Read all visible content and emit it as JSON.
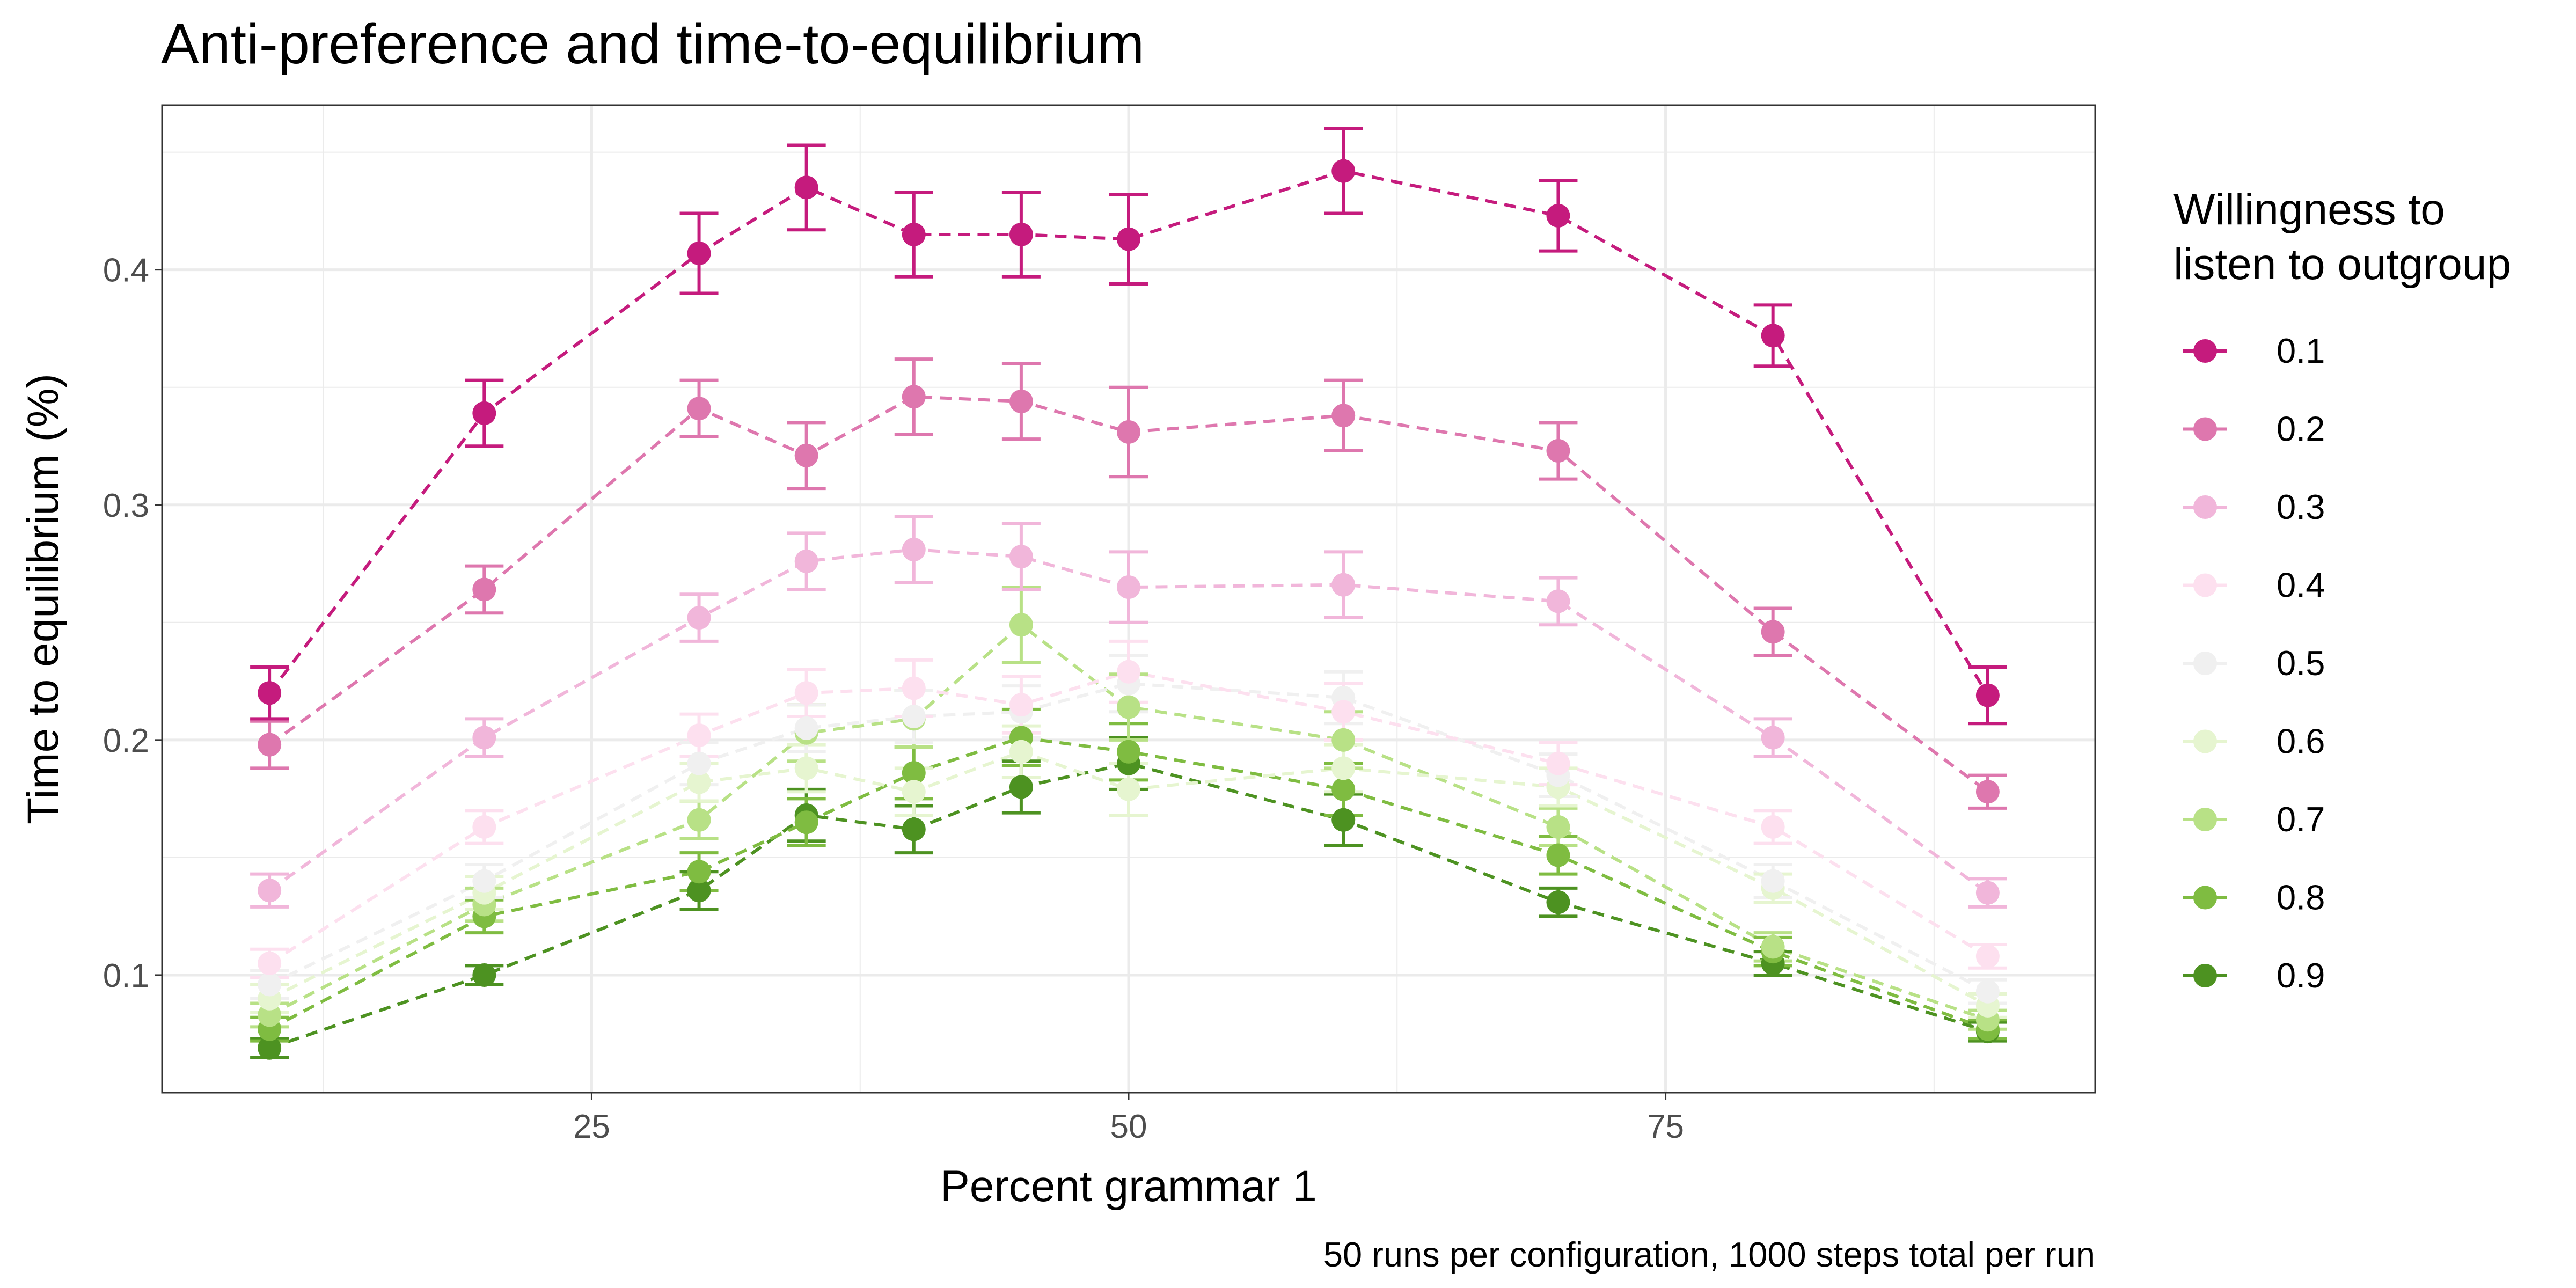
{
  "chart_data": {
    "type": "line",
    "title": "Anti-preference and time-to-equilibrium",
    "xlabel": "Percent grammar 1",
    "ylabel": "Time to equilibrium (%)",
    "caption": "50 runs per configuration, 1000 steps total per run",
    "xlim": [
      5,
      95
    ],
    "ylim": [
      0.05,
      0.47
    ],
    "x_ticks": [
      25,
      50,
      75
    ],
    "y_ticks": [
      0.1,
      0.2,
      0.3,
      0.4
    ],
    "x_tick_labels": [
      "25",
      "50",
      "75"
    ],
    "y_tick_labels": [
      "0.1",
      "0.2",
      "0.3",
      "0.4"
    ],
    "grid": true,
    "line_style": "dashed",
    "legend_title": [
      "Willingness to",
      "listen to outgroup"
    ],
    "legend_position": "right",
    "x": [
      10,
      20,
      30,
      35,
      40,
      45,
      50,
      60,
      70,
      80,
      90
    ],
    "series": [
      {
        "name": "0.1",
        "color": "#c51b7d",
        "values": [
          0.22,
          0.339,
          0.407,
          0.435,
          0.415,
          0.415,
          0.413,
          0.442,
          0.423,
          0.372,
          0.219
        ],
        "errors": [
          0.011,
          0.014,
          0.017,
          0.018,
          0.018,
          0.018,
          0.019,
          0.018,
          0.015,
          0.013,
          0.012
        ]
      },
      {
        "name": "0.2",
        "color": "#de77ae",
        "values": [
          0.198,
          0.264,
          0.341,
          0.321,
          0.346,
          0.344,
          0.331,
          0.338,
          0.323,
          0.246,
          0.178
        ],
        "errors": [
          0.01,
          0.01,
          0.012,
          0.014,
          0.016,
          0.016,
          0.019,
          0.015,
          0.012,
          0.01,
          0.007
        ]
      },
      {
        "name": "0.3",
        "color": "#f1b6da",
        "values": [
          0.136,
          0.201,
          0.252,
          0.276,
          0.281,
          0.278,
          0.265,
          0.266,
          0.259,
          0.201,
          0.135
        ],
        "errors": [
          0.007,
          0.008,
          0.01,
          0.012,
          0.014,
          0.014,
          0.015,
          0.014,
          0.01,
          0.008,
          0.006
        ]
      },
      {
        "name": "0.4",
        "color": "#fde0ef",
        "values": [
          0.105,
          0.163,
          0.202,
          0.22,
          0.222,
          0.215,
          0.229,
          0.212,
          0.19,
          0.163,
          0.108
        ],
        "errors": [
          0.006,
          0.007,
          0.009,
          0.01,
          0.012,
          0.012,
          0.013,
          0.012,
          0.009,
          0.007,
          0.005
        ]
      },
      {
        "name": "0.5",
        "color": "#f0f0f0",
        "values": [
          0.096,
          0.14,
          0.19,
          0.205,
          0.21,
          0.212,
          0.224,
          0.218,
          0.185,
          0.14,
          0.093
        ],
        "errors": [
          0.006,
          0.007,
          0.009,
          0.01,
          0.011,
          0.011,
          0.012,
          0.011,
          0.009,
          0.007,
          0.005
        ]
      },
      {
        "name": "0.6",
        "color": "#e6f5d0",
        "values": [
          0.09,
          0.135,
          0.182,
          0.188,
          0.178,
          0.195,
          0.179,
          0.188,
          0.18,
          0.137,
          0.087
        ],
        "errors": [
          0.006,
          0.007,
          0.008,
          0.01,
          0.01,
          0.011,
          0.011,
          0.01,
          0.008,
          0.006,
          0.005
        ]
      },
      {
        "name": "0.7",
        "color": "#b8e186",
        "values": [
          0.083,
          0.13,
          0.166,
          0.203,
          0.209,
          0.249,
          0.214,
          0.2,
          0.163,
          0.112,
          0.081
        ],
        "errors": [
          0.005,
          0.007,
          0.008,
          0.012,
          0.012,
          0.016,
          0.014,
          0.012,
          0.008,
          0.006,
          0.004
        ]
      },
      {
        "name": "0.8",
        "color": "#7fbc41",
        "values": [
          0.077,
          0.125,
          0.144,
          0.165,
          0.186,
          0.201,
          0.195,
          0.179,
          0.151,
          0.11,
          0.077
        ],
        "errors": [
          0.005,
          0.007,
          0.008,
          0.01,
          0.011,
          0.012,
          0.012,
          0.011,
          0.008,
          0.006,
          0.004
        ]
      },
      {
        "name": "0.9",
        "color": "#4d9221",
        "values": [
          0.069,
          0.1,
          0.136,
          0.168,
          0.162,
          0.18,
          0.19,
          0.166,
          0.131,
          0.105,
          0.076
        ],
        "errors": [
          0.004,
          0.004,
          0.008,
          0.011,
          0.01,
          0.011,
          0.011,
          0.011,
          0.006,
          0.005,
          0.004
        ]
      }
    ]
  }
}
